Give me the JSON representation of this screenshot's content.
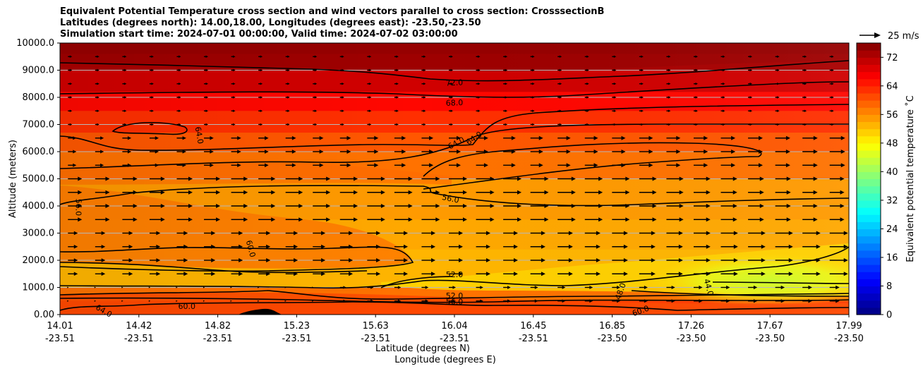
{
  "chart_data": {
    "type": "heatmap",
    "title_lines": [
      "Equivalent Potential Temperature cross section and wind vectors parallel to cross section: CrosssectionB",
      "Latitudes (degrees north): 14.00,18.00, Longitudes (degrees east): -23.50,-23.50",
      "Simulation start time: 2024-07-01 00:00:00, Valid time: 2024-07-02 03:00:00"
    ],
    "ylabel": "Altitude (meters)",
    "xlabel": "Latitude (degrees N)",
    "xlabel2": "Longitude (degrees E)",
    "ylim": [
      0,
      10000
    ],
    "yticks": [
      "0.00",
      "1000.0",
      "2000.0",
      "3000.0",
      "4000.0",
      "5000.0",
      "6000.0",
      "7000.0",
      "8000.0",
      "9000.0",
      "10000.0"
    ],
    "xlim": [
      14.01,
      17.99
    ],
    "xticks": [
      {
        "lat": "14.01",
        "lon": "-23.51"
      },
      {
        "lat": "14.42",
        "lon": "-23.51"
      },
      {
        "lat": "14.82",
        "lon": "-23.51"
      },
      {
        "lat": "15.23",
        "lon": "-23.51"
      },
      {
        "lat": "15.63",
        "lon": "-23.51"
      },
      {
        "lat": "16.04",
        "lon": "-23.51"
      },
      {
        "lat": "16.45",
        "lon": "-23.51"
      },
      {
        "lat": "16.85",
        "lon": "-23.50"
      },
      {
        "lat": "17.26",
        "lon": "-23.50"
      },
      {
        "lat": "17.67",
        "lon": "-23.50"
      },
      {
        "lat": "17.99",
        "lon": "-23.50"
      }
    ],
    "colorbar": {
      "label": "Equivalent potential temperature $^\\circ$C",
      "label_display": "Equivalent potential temperature ˚C",
      "ticks": [
        "0",
        "8",
        "16",
        "24",
        "32",
        "40",
        "48",
        "56",
        "64",
        "72"
      ],
      "range": [
        0,
        76
      ],
      "colormap": "jet"
    },
    "quiver_key": {
      "label": "25 m/s",
      "speed": 25
    },
    "contour_levels": [
      40,
      44,
      48,
      52,
      56,
      60,
      64,
      68,
      72
    ],
    "contour_labels": [
      {
        "text": "72.0",
        "lat": 16.0,
        "alt": 8520
      },
      {
        "text": "68.0",
        "lat": 16.0,
        "alt": 7780
      },
      {
        "text": "64.0",
        "lat": 16.01,
        "alt": 6300
      },
      {
        "text": "64.0",
        "lat": 16.1,
        "alt": 6480
      },
      {
        "text": "64.0",
        "lat": 14.71,
        "alt": 6600
      },
      {
        "text": "56.0",
        "lat": 15.98,
        "alt": 4250
      },
      {
        "text": "56.0",
        "lat": 14.1,
        "alt": 3950
      },
      {
        "text": "60.0",
        "lat": 14.97,
        "alt": 2420
      },
      {
        "text": "52.0",
        "lat": 16.0,
        "alt": 1450
      },
      {
        "text": "52.0",
        "lat": 16.0,
        "alt": 680
      },
      {
        "text": "56.0",
        "lat": 16.0,
        "alt": 460
      },
      {
        "text": "48.0",
        "lat": 16.84,
        "alt": 850
      },
      {
        "text": "44.0",
        "lat": 17.28,
        "alt": 1000
      },
      {
        "text": "60.0",
        "lat": 16.94,
        "alt": 120
      },
      {
        "text": "64.0",
        "lat": 14.23,
        "alt": 120
      },
      {
        "text": "60.0",
        "lat": 14.65,
        "alt": 280
      }
    ],
    "theta_e_bands": [
      {
        "from": 9600,
        "to": 10000,
        "value": 75
      },
      {
        "from": 9000,
        "to": 9600,
        "value": 73
      },
      {
        "from": 8200,
        "to": 9000,
        "value": 70
      },
      {
        "from": 7500,
        "to": 8200,
        "value": 66
      },
      {
        "from": 6700,
        "to": 7500,
        "value": 63
      },
      {
        "from": 6000,
        "to": 6700,
        "value": 60
      },
      {
        "from": 5000,
        "to": 6000,
        "value": 58
      },
      {
        "from": 3500,
        "to": 5000,
        "value": 55
      },
      {
        "from": 2400,
        "to": 3500,
        "value": 54
      },
      {
        "from": 1000,
        "to": 2400,
        "value": 53
      },
      {
        "from": 500,
        "to": 1000,
        "value": 58
      },
      {
        "from": 0,
        "to": 500,
        "value": 62
      }
    ],
    "terrain": {
      "lat_start": 14.91,
      "lat_peak": 15.05,
      "lat_end": 15.13,
      "peak_alt": 210
    },
    "wind": {
      "rows_alt": [
        9500,
        9000,
        8500,
        8000,
        7500,
        7000,
        6500,
        6000,
        5500,
        5000,
        4500,
        4000,
        3500,
        3000,
        2500,
        2000,
        1500,
        1000,
        500
      ],
      "speed_range_ms": [
        2,
        14
      ]
    }
  }
}
